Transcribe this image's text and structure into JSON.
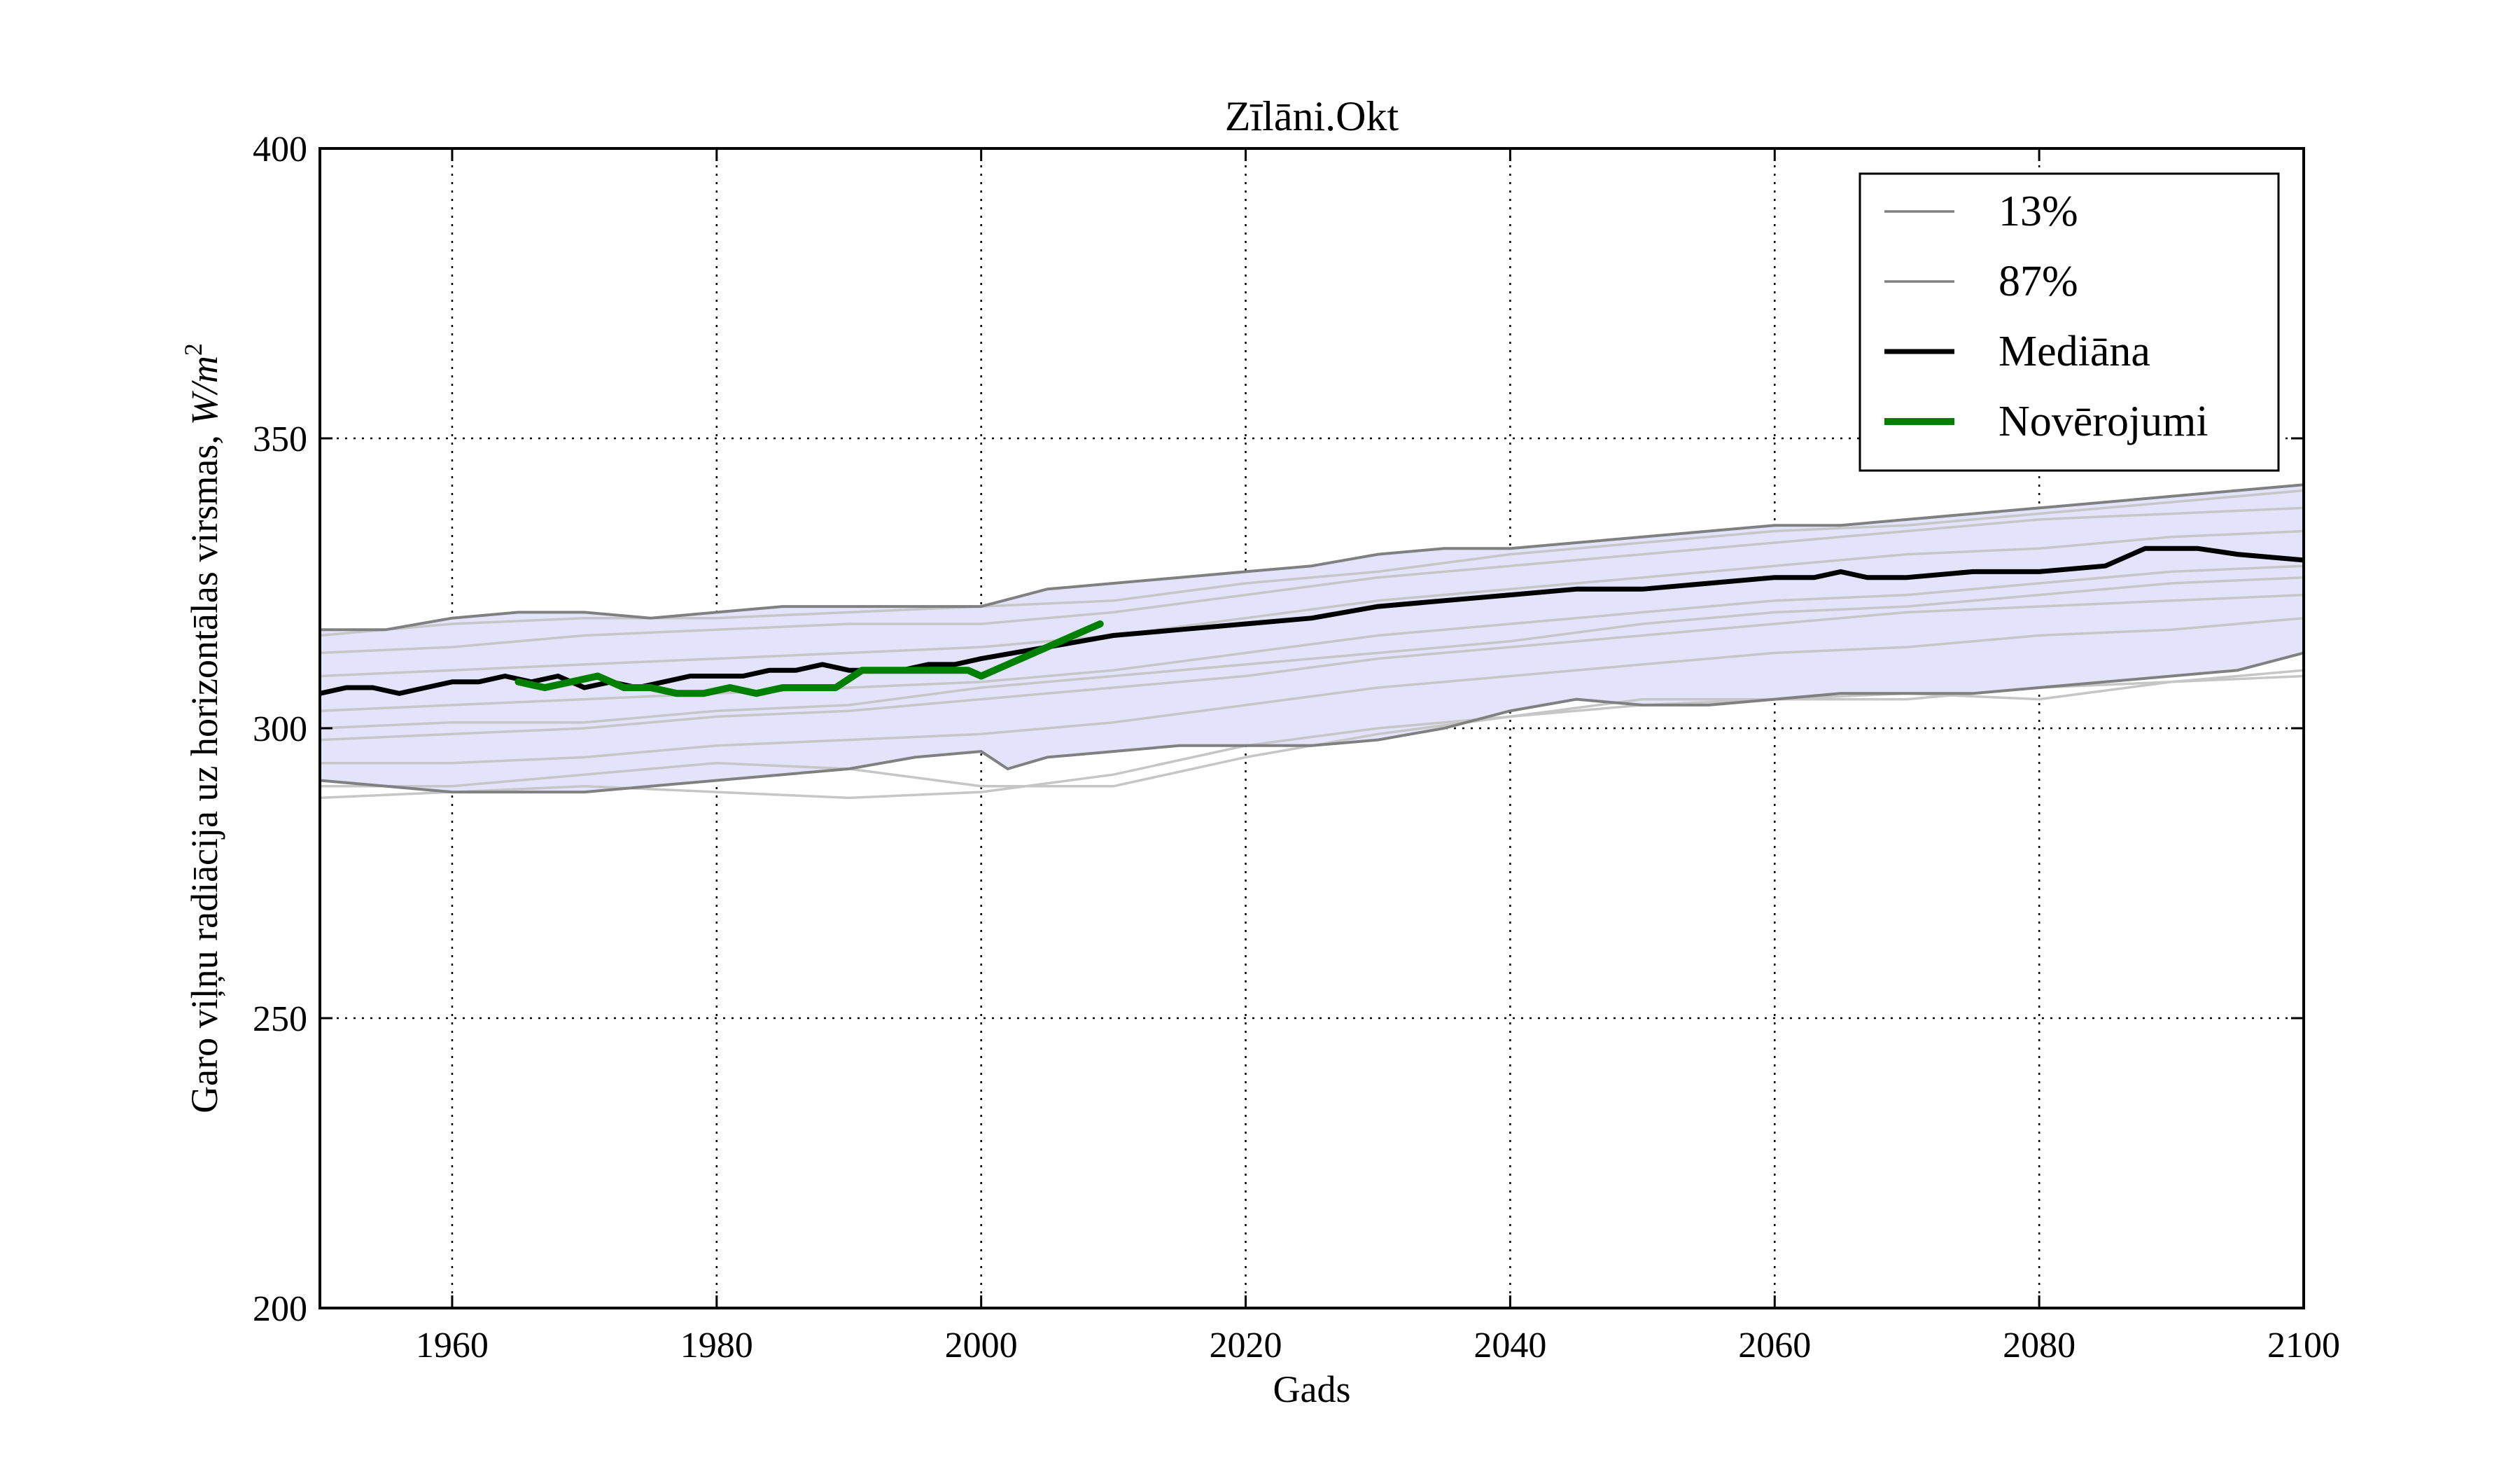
{
  "chart_data": {
    "type": "line",
    "title": "Zīlāni.Okt",
    "xlabel": "Gads",
    "ylabel": "Garo viļņu radiācija uz horizontālas virsmas,",
    "ylabel_unit_base": "W/m",
    "ylabel_unit_exp": "2",
    "xlim": [
      1950,
      2100
    ],
    "ylim": [
      200,
      400
    ],
    "xticks": [
      1960,
      1980,
      2000,
      2020,
      2040,
      2060,
      2080,
      2100
    ],
    "yticks": [
      200,
      250,
      300,
      350,
      400
    ],
    "grid": true,
    "legend_position": "top-right",
    "legend": [
      {
        "label": "13%",
        "color": "#808080",
        "style": "thin"
      },
      {
        "label": "87%",
        "color": "#808080",
        "style": "thin"
      },
      {
        "label": "Mediāna",
        "color": "#000000",
        "style": "medium"
      },
      {
        "label": "Novērojumi",
        "color": "#008000",
        "style": "thick"
      }
    ],
    "colors": {
      "band_fill": "#e3e3fb",
      "percentile": "#808080",
      "ensemble": "#c6c6c6",
      "median": "#000000",
      "observations": "#008000"
    },
    "series": [
      {
        "name": "13%",
        "x": [
          1950,
          1955,
          1960,
          1965,
          1970,
          1975,
          1980,
          1985,
          1990,
          1995,
          2000,
          2002,
          2005,
          2010,
          2015,
          2020,
          2025,
          2030,
          2035,
          2040,
          2045,
          2050,
          2055,
          2060,
          2065,
          2070,
          2075,
          2080,
          2085,
          2090,
          2095,
          2100
        ],
        "values": [
          291,
          290,
          289,
          289,
          289,
          290,
          291,
          292,
          293,
          295,
          296,
          293,
          295,
          296,
          297,
          297,
          297,
          298,
          300,
          303,
          305,
          304,
          304,
          305,
          306,
          306,
          306,
          307,
          308,
          309,
          310,
          313
        ]
      },
      {
        "name": "87%",
        "x": [
          1950,
          1955,
          1960,
          1965,
          1970,
          1975,
          1980,
          1985,
          1990,
          1995,
          2000,
          2005,
          2010,
          2015,
          2020,
          2025,
          2030,
          2035,
          2040,
          2045,
          2050,
          2055,
          2060,
          2065,
          2070,
          2075,
          2080,
          2085,
          2090,
          2095,
          2100
        ],
        "values": [
          317,
          317,
          319,
          320,
          320,
          319,
          320,
          321,
          321,
          321,
          321,
          324,
          325,
          326,
          327,
          328,
          330,
          331,
          331,
          332,
          333,
          334,
          335,
          335,
          336,
          337,
          338,
          339,
          340,
          341,
          342
        ]
      },
      {
        "name": "Mediāna",
        "x": [
          1950,
          1952,
          1954,
          1956,
          1958,
          1960,
          1962,
          1964,
          1966,
          1968,
          1970,
          1972,
          1974,
          1976,
          1978,
          1980,
          1982,
          1984,
          1986,
          1988,
          1990,
          1992,
          1994,
          1996,
          1998,
          2000,
          2005,
          2010,
          2015,
          2020,
          2025,
          2030,
          2035,
          2040,
          2045,
          2050,
          2055,
          2060,
          2063,
          2065,
          2067,
          2070,
          2075,
          2080,
          2085,
          2088,
          2090,
          2092,
          2095,
          2100
        ],
        "values": [
          306,
          307,
          307,
          306,
          307,
          308,
          308,
          309,
          308,
          309,
          307,
          308,
          307,
          308,
          309,
          309,
          309,
          310,
          310,
          311,
          310,
          310,
          310,
          311,
          311,
          312,
          314,
          316,
          317,
          318,
          319,
          321,
          322,
          323,
          324,
          324,
          325,
          326,
          326,
          327,
          326,
          326,
          327,
          327,
          328,
          331,
          331,
          331,
          330,
          329
        ]
      },
      {
        "name": "Novērojumi",
        "x": [
          1965,
          1967,
          1969,
          1971,
          1973,
          1975,
          1977,
          1979,
          1981,
          1983,
          1985,
          1987,
          1989,
          1991,
          1993,
          1995,
          1997,
          1999,
          2000,
          2002,
          2004,
          2006,
          2008,
          2009
        ],
        "values": [
          308,
          307,
          308,
          309,
          307,
          307,
          306,
          306,
          307,
          306,
          307,
          307,
          307,
          310,
          310,
          310,
          310,
          310,
          309,
          311,
          313,
          315,
          317,
          318
        ]
      },
      {
        "x": [
          1950,
          1960,
          1970,
          1980,
          1990,
          2000,
          2010,
          2020,
          2030,
          2040,
          2050,
          2060,
          2070,
          2080,
          2090,
          2100
        ],
        "values": [
          288,
          289,
          290,
          289,
          288,
          289,
          292,
          297,
          300,
          302,
          304,
          305,
          305,
          307,
          308,
          309
        ]
      },
      {
        "x": [
          1950,
          1960,
          1970,
          1980,
          1990,
          2000,
          2010,
          2020,
          2030,
          2040,
          2050,
          2060,
          2070,
          2080,
          2090,
          2100
        ],
        "values": [
          294,
          294,
          295,
          297,
          298,
          299,
          301,
          304,
          307,
          309,
          311,
          313,
          314,
          316,
          317,
          319
        ]
      },
      {
        "x": [
          1950,
          1960,
          1970,
          1980,
          1990,
          2000,
          2010,
          2020,
          2030,
          2040,
          2050,
          2060,
          2070,
          2080,
          2090,
          2100
        ],
        "values": [
          298,
          299,
          300,
          302,
          303,
          305,
          307,
          309,
          312,
          314,
          316,
          318,
          320,
          321,
          322,
          323
        ]
      },
      {
        "x": [
          1950,
          1960,
          1970,
          1980,
          1990,
          2000,
          2010,
          2020,
          2030,
          2040,
          2050,
          2060,
          2070,
          2080,
          2090,
          2100
        ],
        "values": [
          303,
          304,
          305,
          306,
          307,
          308,
          310,
          313,
          316,
          318,
          320,
          322,
          323,
          325,
          327,
          328
        ]
      },
      {
        "x": [
          1950,
          1960,
          1970,
          1980,
          1990,
          2000,
          2010,
          2020,
          2030,
          2040,
          2050,
          2060,
          2070,
          2080,
          2090,
          2100
        ],
        "values": [
          309,
          310,
          311,
          312,
          313,
          314,
          316,
          319,
          322,
          324,
          326,
          328,
          330,
          331,
          333,
          334
        ]
      },
      {
        "x": [
          1950,
          1960,
          1970,
          1980,
          1990,
          2000,
          2010,
          2020,
          2030,
          2040,
          2050,
          2060,
          2070,
          2080,
          2090,
          2100
        ],
        "values": [
          313,
          314,
          316,
          317,
          318,
          318,
          320,
          323,
          326,
          328,
          330,
          332,
          334,
          336,
          337,
          338
        ]
      },
      {
        "x": [
          1950,
          1960,
          1970,
          1980,
          1990,
          2000,
          2010,
          2020,
          2030,
          2040,
          2050,
          2060,
          2070,
          2080,
          2090,
          2100
        ],
        "values": [
          300,
          301,
          301,
          303,
          304,
          307,
          309,
          311,
          313,
          315,
          318,
          320,
          321,
          323,
          325,
          326
        ]
      },
      {
        "x": [
          1950,
          1960,
          1970,
          1980,
          1990,
          2000,
          2010,
          2020,
          2030,
          2040,
          2050,
          2060,
          2070,
          2080,
          2090,
          2100
        ],
        "values": [
          290,
          290,
          292,
          294,
          293,
          290,
          290,
          295,
          299,
          302,
          305,
          305,
          306,
          305,
          308,
          310
        ]
      },
      {
        "x": [
          1950,
          1960,
          1970,
          1980,
          1990,
          2000,
          2010,
          2020,
          2030,
          2040,
          2050,
          2060,
          2070,
          2080,
          2090,
          2100
        ],
        "values": [
          316,
          318,
          319,
          319,
          320,
          321,
          322,
          325,
          327,
          330,
          332,
          334,
          335,
          337,
          339,
          341
        ]
      }
    ]
  }
}
